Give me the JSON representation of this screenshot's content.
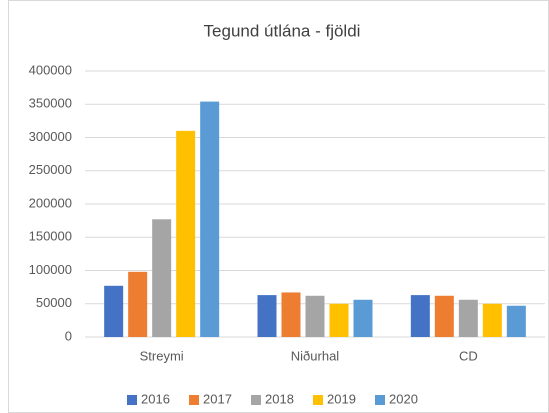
{
  "chart_data": {
    "type": "bar",
    "title": "Tegund útlána - fjöldi",
    "categories": [
      "Streymi",
      "Niðurhal",
      "CD"
    ],
    "series": [
      {
        "name": "2016",
        "color": "#4472c4",
        "values": [
          77000,
          63000,
          63000
        ]
      },
      {
        "name": "2017",
        "color": "#ed7d31",
        "values": [
          98000,
          67000,
          62000
        ]
      },
      {
        "name": "2018",
        "color": "#a5a5a5",
        "values": [
          177000,
          62000,
          56000
        ]
      },
      {
        "name": "2019",
        "color": "#ffc000",
        "values": [
          310000,
          50000,
          50000
        ]
      },
      {
        "name": "2020",
        "color": "#5b9bd5",
        "values": [
          354000,
          56000,
          47000
        ]
      }
    ],
    "ylim": [
      0,
      400000
    ],
    "yticks": [
      0,
      50000,
      100000,
      150000,
      200000,
      250000,
      300000,
      350000,
      400000
    ],
    "grid": true,
    "legend": "bottom"
  }
}
